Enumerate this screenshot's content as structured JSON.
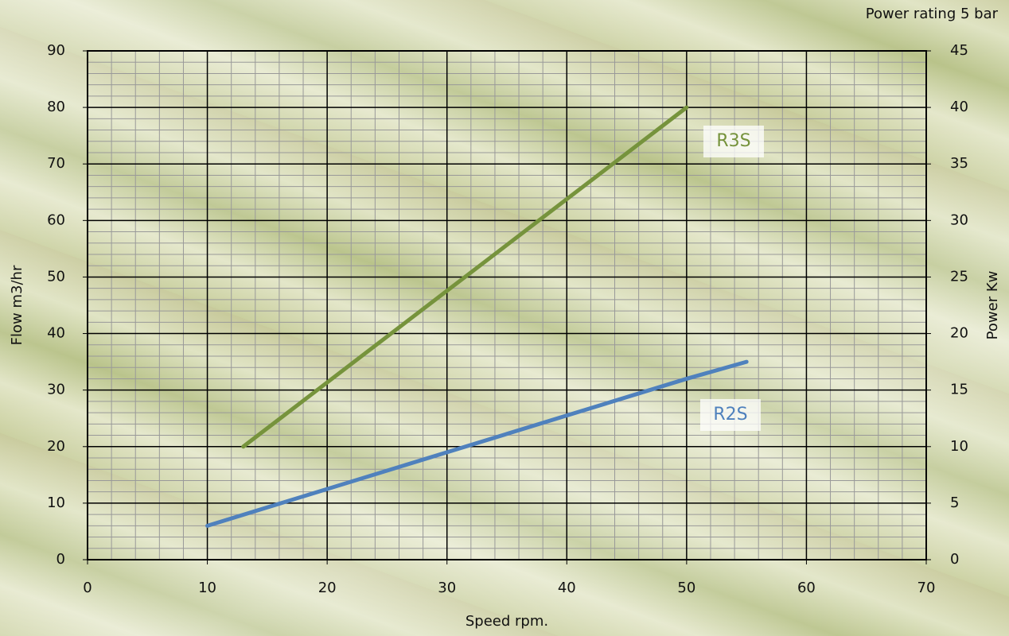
{
  "chart_data": {
    "type": "line",
    "x_label": "Speed  rpm.",
    "y_label": "Flow   m3/hr",
    "y2_label": "Power   Kw",
    "annotation": "Power rating 5 bar",
    "xlim": [
      0,
      70
    ],
    "xticks": [
      0,
      10,
      20,
      30,
      40,
      50,
      60,
      70
    ],
    "ylim": [
      0,
      90
    ],
    "yticks": [
      0,
      10,
      20,
      30,
      40,
      50,
      60,
      70,
      80,
      90
    ],
    "y2lim": [
      0,
      45
    ],
    "y2ticks": [
      0,
      5,
      10,
      15,
      20,
      25,
      30,
      35,
      40,
      45
    ],
    "grid": true,
    "minor_grid": true,
    "series": [
      {
        "name": "R3S",
        "color": "#76933c",
        "x": [
          13,
          50
        ],
        "values": [
          20,
          80
        ]
      },
      {
        "name": "R2S",
        "color": "#4f81bd",
        "x": [
          10,
          20,
          30,
          40,
          50,
          55
        ],
        "values": [
          6,
          12.5,
          19,
          25.5,
          32,
          35
        ]
      }
    ]
  }
}
